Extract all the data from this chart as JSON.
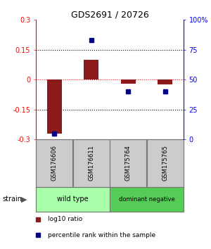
{
  "title": "GDS2691 / 20726",
  "samples": [
    "GSM176606",
    "GSM176611",
    "GSM175764",
    "GSM175765"
  ],
  "log10_ratio": [
    -0.27,
    0.1,
    -0.02,
    -0.025
  ],
  "percentile_rank": [
    5,
    83,
    40,
    40
  ],
  "bar_color": "#8B1A1A",
  "dot_color": "#00008B",
  "ylim_left": [
    -0.3,
    0.3
  ],
  "ylim_right": [
    0,
    100
  ],
  "yticks_left": [
    -0.3,
    -0.15,
    0,
    0.15,
    0.3
  ],
  "yticks_right": [
    0,
    25,
    50,
    75,
    100
  ],
  "ytick_labels_right": [
    "0",
    "25",
    "50",
    "75",
    "100%"
  ],
  "hlines": [
    -0.15,
    0.0,
    0.15
  ],
  "hline_colors": [
    "black",
    "red",
    "black"
  ],
  "hline_styles": [
    "dotted",
    "dotted",
    "dotted"
  ],
  "groups": [
    {
      "label": "wild type",
      "samples": [
        0,
        1
      ],
      "color": "#AAFFAA"
    },
    {
      "label": "dominant negative",
      "samples": [
        2,
        3
      ],
      "color": "#55CC55"
    }
  ],
  "strain_label": "strain",
  "legend_items": [
    {
      "color": "#8B1A1A",
      "label": "log10 ratio"
    },
    {
      "color": "#00008B",
      "label": "percentile rank within the sample"
    }
  ],
  "bar_width": 0.4,
  "sample_box_color": "#CCCCCC",
  "sample_box_edge": "#777777",
  "left_spine_color": "red",
  "right_spine_color": "blue",
  "bg_color": "#FFFFFF"
}
